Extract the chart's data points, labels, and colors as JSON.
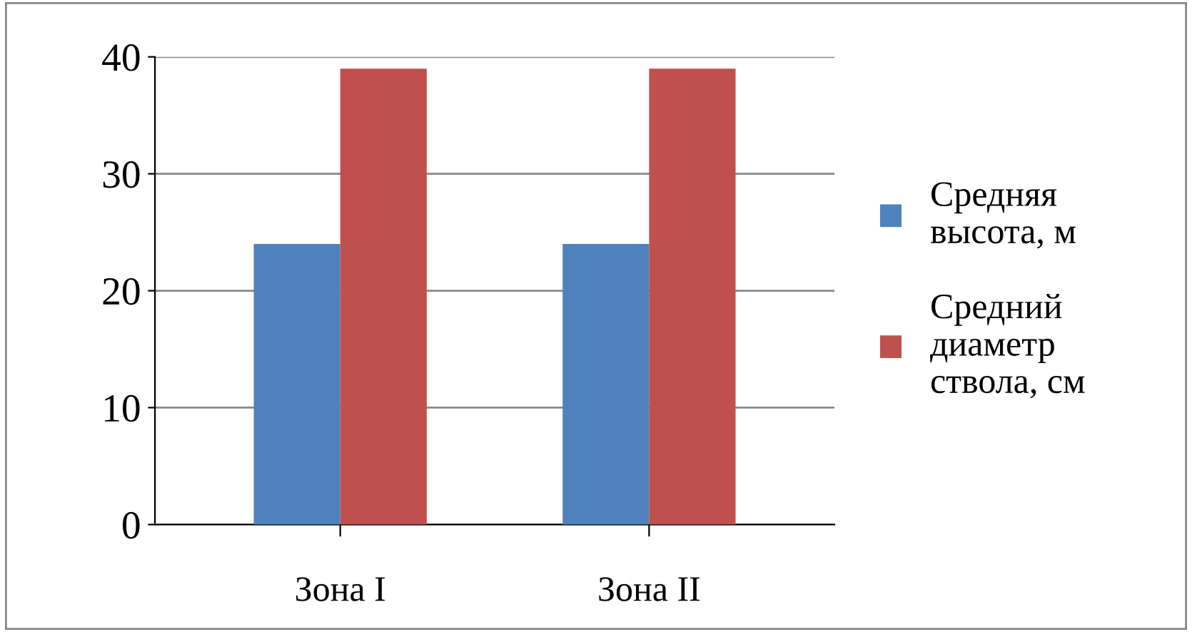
{
  "chart_data": {
    "type": "bar",
    "categories": [
      "Зона I",
      "Зона II"
    ],
    "series": [
      {
        "name": "Средняя\nвысота, м",
        "color": "#4f81bd",
        "values": [
          24,
          24
        ]
      },
      {
        "name": "Средний\nдиаметр\nствола, см",
        "color": "#c0504d",
        "values": [
          39,
          39
        ]
      }
    ],
    "ylim": [
      0,
      40
    ],
    "yticks": [
      0,
      10,
      20,
      30,
      40
    ],
    "grid": "y",
    "legend": "right"
  }
}
